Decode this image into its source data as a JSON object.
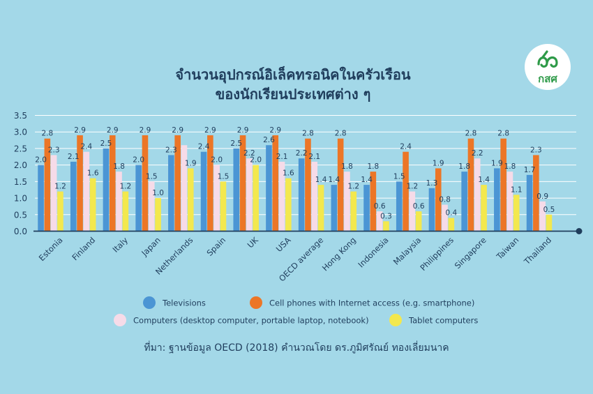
{
  "chart_data": {
    "type": "bar",
    "title": [
      "จำนวนอุปกรณ์อิเล็คทรอนิคในครัวเรือน",
      "ของนักเรียนประเทศต่าง ๆ"
    ],
    "categories": [
      "Estonia",
      "Finland",
      "Italy",
      "Japan",
      "Netherlands",
      "Spain",
      "UK",
      "USA",
      "OECD average",
      "Hong Kong",
      "Indonesia",
      "Malaysia",
      "Philippines",
      "Singapore",
      "Taiwan",
      "Thailand"
    ],
    "series": [
      {
        "name": "Televisions",
        "color": "#4b95d4",
        "values": [
          2.0,
          2.1,
          2.5,
          2.0,
          2.3,
          2.4,
          2.5,
          2.6,
          2.2,
          1.4,
          1.4,
          1.5,
          1.3,
          1.8,
          1.9,
          1.7
        ]
      },
      {
        "name": "Cell phones with Internet access (e.g. smartphone)",
        "color": "#ec7626",
        "values": [
          2.8,
          2.9,
          2.9,
          2.9,
          2.9,
          2.9,
          2.9,
          2.9,
          2.8,
          2.8,
          1.8,
          2.4,
          1.9,
          2.8,
          2.8,
          2.3
        ]
      },
      {
        "name": "Computers (desktop computer, portable laptop, notebook)",
        "color": "#f6dbe8",
        "values": [
          2.3,
          2.4,
          1.8,
          1.5,
          2.6,
          2.0,
          2.2,
          2.1,
          2.1,
          1.8,
          0.6,
          1.2,
          0.8,
          2.2,
          1.8,
          0.9
        ]
      },
      {
        "name": "Tablet computers",
        "color": "#f3e84e",
        "values": [
          1.2,
          1.6,
          1.2,
          1.0,
          1.9,
          1.5,
          2.0,
          1.6,
          1.4,
          1.2,
          0.3,
          0.6,
          0.4,
          1.4,
          1.1,
          0.5
        ]
      }
    ],
    "value_labels": [
      [
        "2.0",
        "2.8",
        "2.3",
        "1.2"
      ],
      [
        "2.1",
        "2.9",
        "2.4",
        "1.6"
      ],
      [
        "2.5",
        "2.9",
        "1.8",
        "1.2"
      ],
      [
        "2.0",
        "2.9",
        "1.5",
        "1.0"
      ],
      [
        "2.3",
        "2.9",
        "",
        "1.9"
      ],
      [
        "2.4",
        "2.9",
        "2.0",
        "1.5"
      ],
      [
        "2.5",
        "2.9",
        "2.2",
        "2.0"
      ],
      [
        "2.6",
        "2.9",
        "2.1",
        "1.6"
      ],
      [
        "2.2",
        "2.8",
        "2.1",
        "1.4"
      ],
      [
        "1.4",
        "2.8",
        "1.8",
        "1.2"
      ],
      [
        "1.4",
        "1.8",
        "0.6",
        "0.3"
      ],
      [
        "1.5",
        "2.4",
        "1.2",
        "0.6"
      ],
      [
        "1.3",
        "1.9",
        "0.8",
        "0.4"
      ],
      [
        "1.8",
        "2.8",
        "2.2",
        "1.4"
      ],
      [
        "1.9",
        "2.8",
        "1.8",
        "1.1"
      ],
      [
        "1.7",
        "2.3",
        "0.9",
        "0.5"
      ]
    ],
    "y_ticks": [
      "0.0",
      "0.5",
      "1.0",
      "1.5",
      "2.0",
      "2.5",
      "3.0",
      "3.5"
    ],
    "ylim": [
      0,
      3.5
    ],
    "grid": true,
    "legend_position": "bottom",
    "source": "ที่มา: ฐานข้อมูล OECD (2018) คำนวณโดย ดร.ภูมิศรัณย์ ทองเลี่ยมนาค"
  },
  "logo": {
    "text": "กสศ",
    "color": "#2e9a48"
  },
  "colors": {
    "background": "#a3d8e8",
    "text": "#1f3d5c",
    "grid": "#ffffff"
  }
}
